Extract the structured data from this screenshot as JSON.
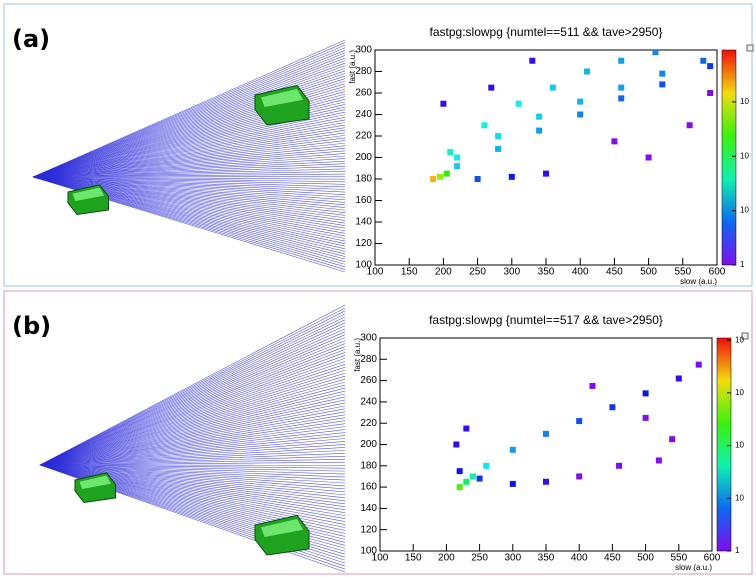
{
  "chart_data": [
    {
      "type": "hist2d",
      "panel_label": "(a)",
      "title": "fastpg:slowpg {numtel==511 && tave>2950}",
      "xlabel": "slow (a.u.)",
      "ylabel": "fast (a.u.)",
      "xlim": [
        100,
        600
      ],
      "ylim": [
        100,
        300
      ],
      "xticks": [
        100,
        150,
        200,
        250,
        300,
        350,
        400,
        450,
        500,
        550,
        600
      ],
      "yticks": [
        100,
        120,
        140,
        160,
        180,
        200,
        220,
        240,
        260,
        280,
        300
      ],
      "clim": [
        1,
        9000
      ],
      "clog": true,
      "cticks": [
        1,
        {
          "value": 10,
          "label": "10"
        },
        {
          "value": 100,
          "label": "10"
        },
        {
          "value": 1000,
          "label": "10"
        }
      ],
      "x": [
        185,
        195,
        205,
        210,
        260,
        310,
        360,
        410,
        460,
        510,
        220,
        280,
        340,
        400,
        460,
        520,
        580,
        220,
        280,
        340,
        400,
        460,
        520,
        590,
        250,
        300,
        350,
        200,
        270,
        330,
        450,
        500,
        560,
        590
      ],
      "y": [
        180,
        182,
        185,
        205,
        230,
        250,
        265,
        280,
        290,
        298,
        200,
        220,
        238,
        252,
        265,
        278,
        290,
        192,
        208,
        225,
        240,
        255,
        268,
        285,
        180,
        182,
        185,
        250,
        265,
        290,
        215,
        200,
        230,
        260
      ],
      "z": [
        2000,
        500,
        200,
        30,
        25,
        20,
        15,
        12,
        10,
        8,
        20,
        18,
        15,
        12,
        10,
        8,
        6,
        15,
        12,
        10,
        8,
        6,
        5,
        4,
        5,
        3,
        2,
        2,
        2,
        2,
        1,
        1,
        1,
        1
      ]
    },
    {
      "type": "hist2d",
      "panel_label": "(b)",
      "title": "fastpg:slowpg {numtel==517 && tave>2950}",
      "xlabel": "slow (a.u.)",
      "ylabel": "fast (a.u.)",
      "xlim": [
        100,
        600
      ],
      "ylim": [
        100,
        300
      ],
      "xticks": [
        100,
        150,
        200,
        250,
        300,
        350,
        400,
        450,
        500,
        550,
        600
      ],
      "yticks": [
        100,
        120,
        140,
        160,
        180,
        200,
        220,
        240,
        260,
        280,
        300
      ],
      "clim": [
        1,
        11000
      ],
      "clog": true,
      "cticks": [
        1,
        {
          "value": 10,
          "label": "10"
        },
        {
          "value": 100,
          "label": "10"
        },
        {
          "value": 1000,
          "label": "10"
        },
        {
          "value": 10000,
          "label": "10"
        }
      ],
      "x": [
        220,
        230,
        240,
        260,
        300,
        350,
        400,
        450,
        500,
        550,
        580,
        220,
        215,
        230,
        250,
        300,
        350,
        400,
        460,
        520,
        540,
        500,
        420
      ],
      "y": [
        160,
        165,
        170,
        180,
        195,
        210,
        222,
        235,
        248,
        262,
        275,
        175,
        200,
        215,
        168,
        163,
        165,
        170,
        180,
        185,
        205,
        225,
        255
      ],
      "z": [
        300,
        80,
        40,
        20,
        10,
        8,
        5,
        4,
        3,
        2,
        1,
        3,
        2,
        2,
        4,
        3,
        2,
        1,
        1,
        1,
        1,
        1,
        1
      ]
    }
  ]
}
